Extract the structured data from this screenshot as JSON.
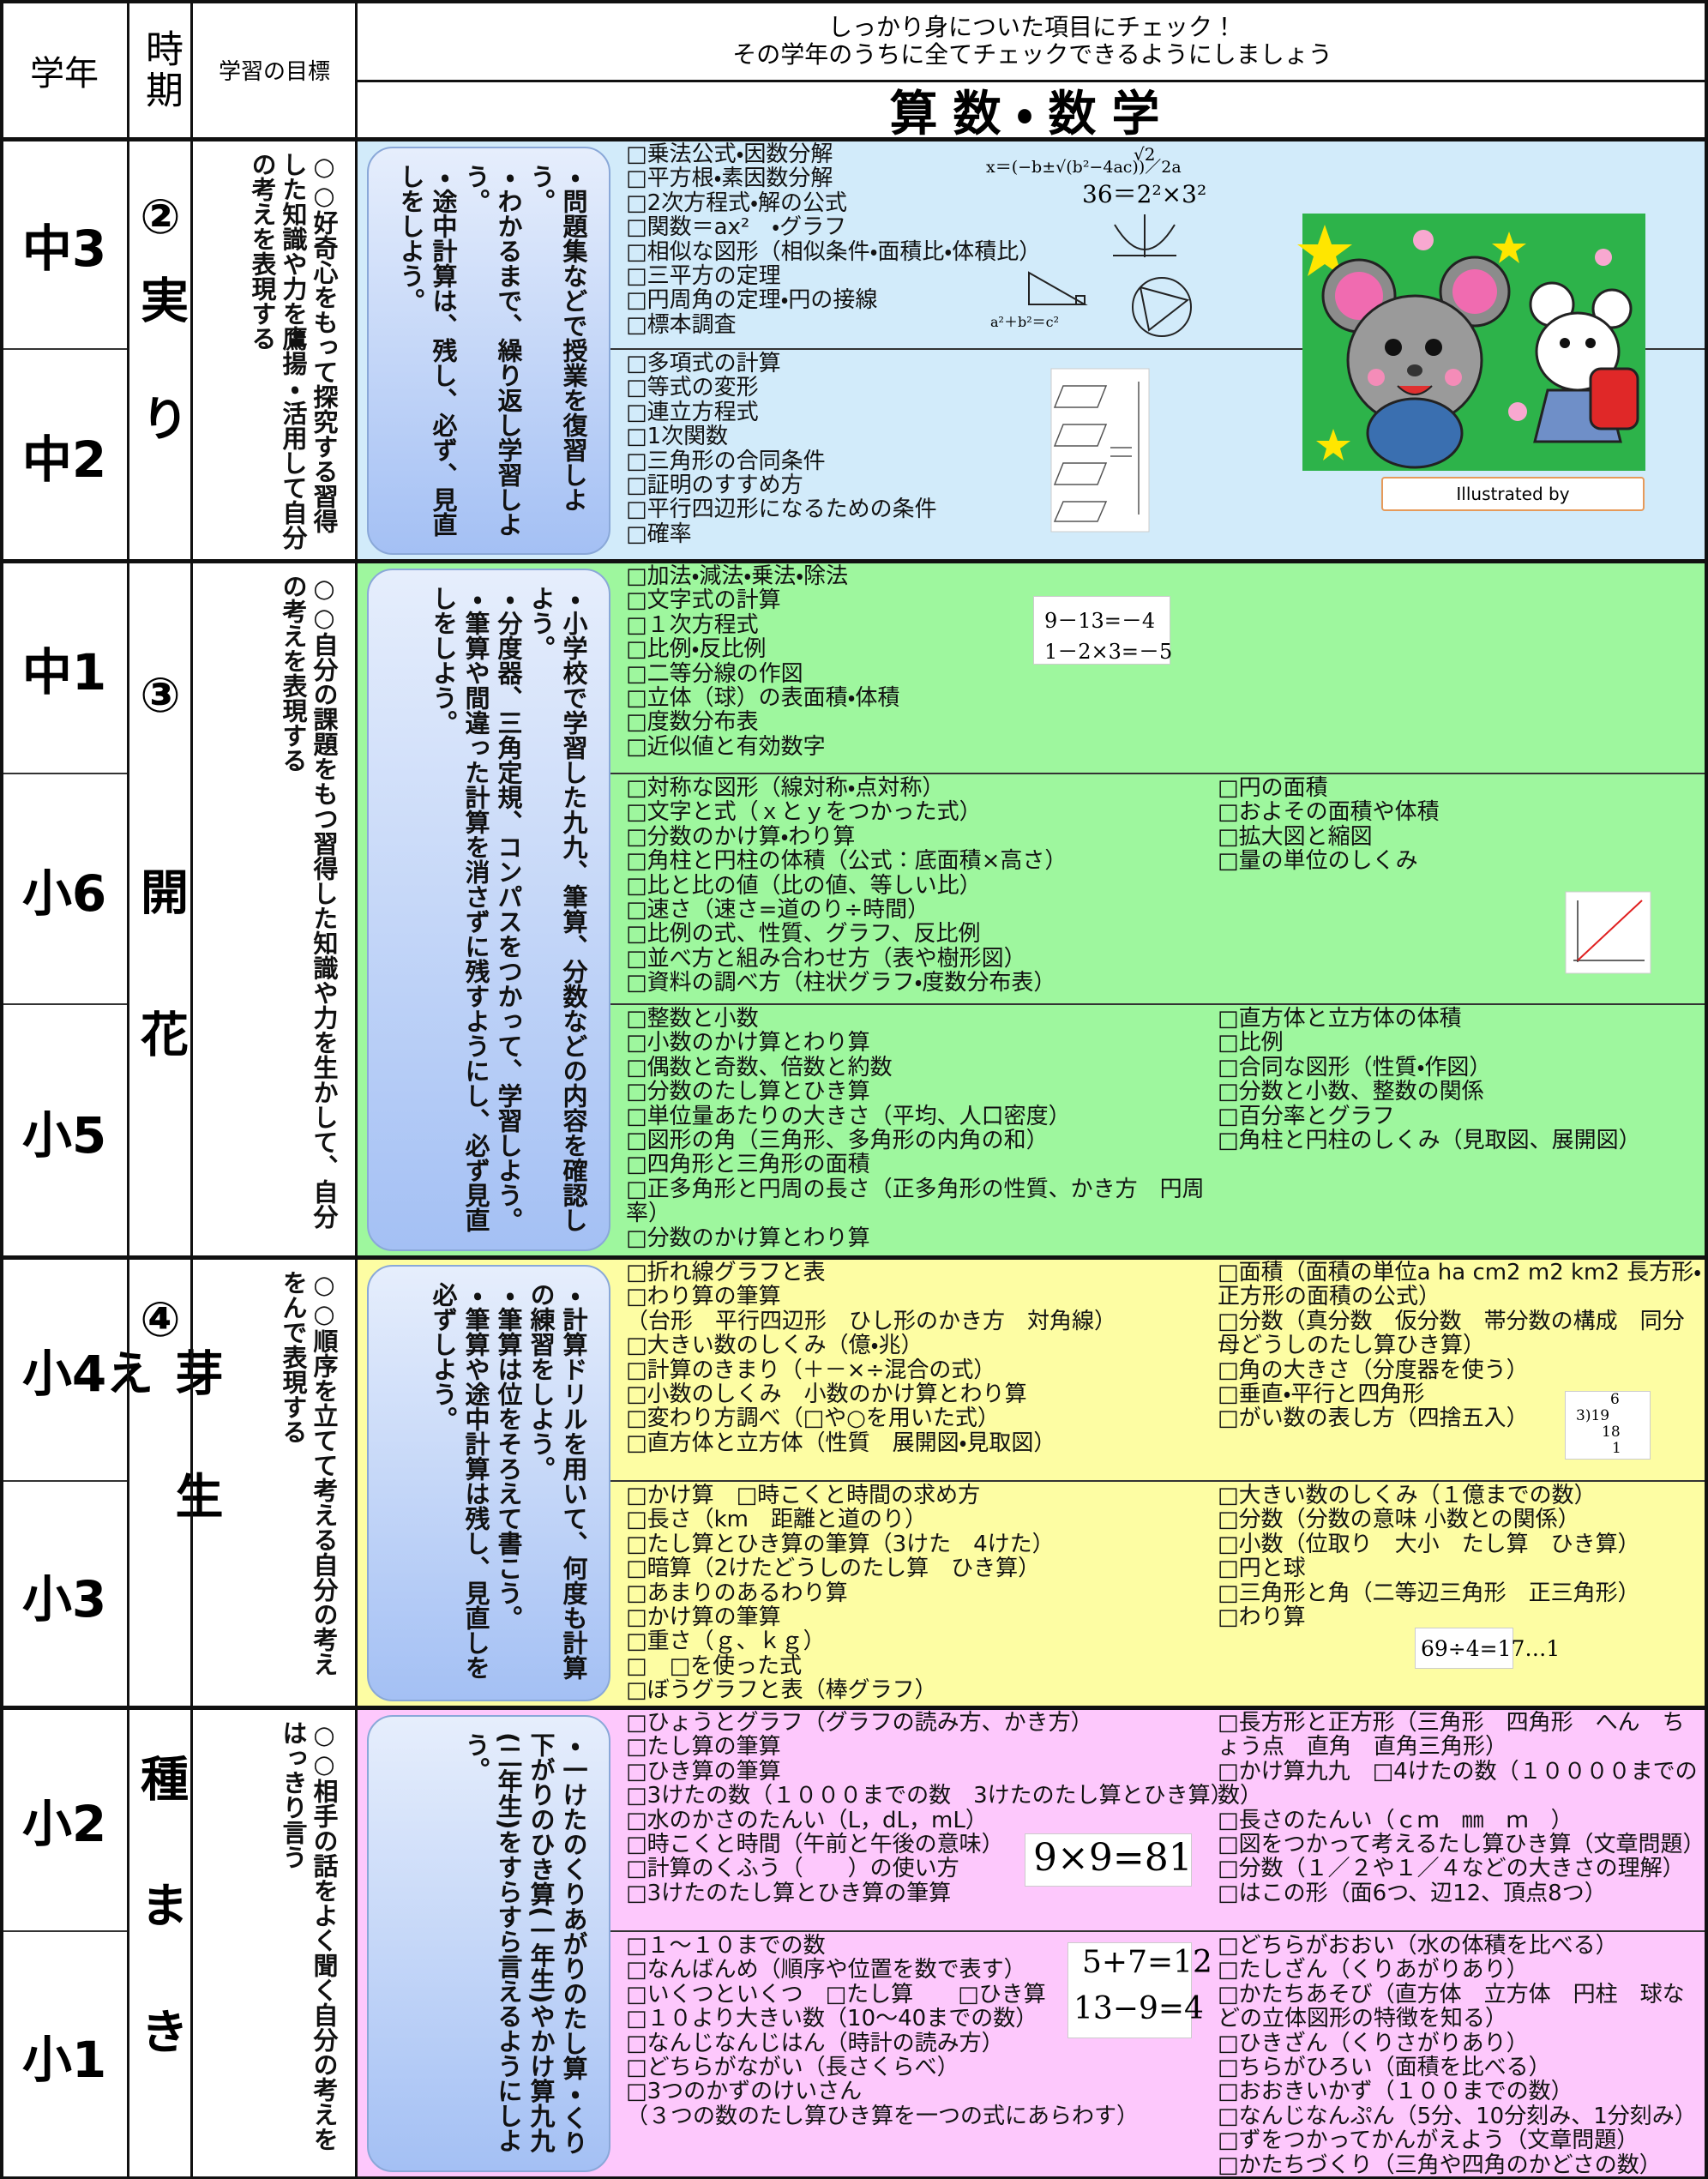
{
  "header": {
    "col_grade": "学年",
    "col_period": "時期",
    "col_goal": "学習の目標",
    "instruction": [
      "しっかり身についた項目にチェック！",
      "その学年のうちに全てチェックできるようにしましょう"
    ],
    "subject": "算数・数学"
  },
  "illustration_credit": "Illustrated by",
  "groups": [
    {
      "period_number": "②",
      "period": "実り",
      "goal": "○○好奇心をもって探究する習得した知識や力を鷹揚・活用して自分の考えを表現する",
      "note": [
        "・問題集などで授業を復習しよう。",
        "・わかるまで、繰り返し学習しよう。",
        "・途中計算は、残し、必ず、見直しをしよう。"
      ],
      "grades": [
        {
          "grade": "中3",
          "left": [
            "□乗法公式・因数分解",
            "□平方根・素因数分解",
            "□2次方程式・解の公式",
            "□関数＝ax²　・グラフ",
            "□相似な図形（相似条件・面積比・体積比）",
            "□三平方の定理",
            "□円周角の定理・円の接線",
            "□標本調査"
          ],
          "figure": [
            "x＝(−b±√(b²−4ac))／2a",
            "√2",
            "36＝2²×3²",
            "a²＋b²＝c²"
          ]
        },
        {
          "grade": "中2",
          "left": [
            "□多項式の計算",
            "□等式の変形",
            "□連立方程式",
            "□1次関数",
            "□三角形の合同条件",
            "□証明のすすめ方",
            "□平行四辺形になるための条件",
            "□確率"
          ]
        }
      ]
    },
    {
      "period_number": "③",
      "period": "開花",
      "goal": "○○自分の課題をもつ習得した知識や力を生かして、自分の考えを表現する",
      "note": [
        "・小学校で学習した九九、筆算、分数などの内容を確認しよう。",
        "・分度器、三角定規、コンパスをつかって、学習しよう。",
        "・筆算や間違った計算を消さずに残すようにし、必ず見直しをしよう。"
      ],
      "grades": [
        {
          "grade": "中1",
          "left": [
            "□加法・減法・乗法・除法",
            "□文字式の計算",
            "□１次方程式",
            "□比例・反比例",
            "□二等分線の作図",
            "□立体（球）の表面積・体積",
            "□度数分布表",
            "□近似値と有効数字"
          ],
          "figure": [
            "9－13=－4",
            "1－2×3=－5"
          ]
        },
        {
          "grade": "小6",
          "left": [
            "□対称な図形（線対称・点対称）",
            "□文字と式（ｘとｙをつかった式）",
            "□分数のかけ算・わり算",
            "□角柱と円柱の体積（公式：底面積×高さ）",
            "□比と比の値（比の値、等しい比）",
            "□速さ（速さ=道のり÷時間）",
            "□比例の式、性質、グラフ、反比例",
            "□並べ方と組み合わせ方（表や樹形図）",
            "□資料の調べ方（柱状グラフ・度数分布表）"
          ],
          "right": [
            "□円の面積",
            "□およその面積や体積",
            "□拡大図と縮図",
            "□量の単位のしくみ"
          ]
        },
        {
          "grade": "小5",
          "left": [
            "□整数と小数",
            "□小数のかけ算とわり算",
            "□偶数と奇数、倍数と約数",
            "□分数のたし算とひき算",
            "□単位量あたりの大きさ（平均、人口密度）",
            "□図形の角（三角形、多角形の内角の和）",
            "□四角形と三角形の面積",
            "□正多角形と円周の長さ（正多角形の性質、かき方　円周率）",
            "□分数のかけ算とわり算"
          ],
          "right": [
            "□直方体と立方体の体積",
            "□比例",
            "□合同な図形（性質・作図）",
            "□分数と小数、整数の関係",
            "□百分率とグラフ",
            "□角柱と円柱のしくみ（見取図、展開図）"
          ]
        }
      ]
    },
    {
      "period_number": "④",
      "period": "芽生え",
      "goal": "○○順序を立てて考える自分の考えをんで表現する",
      "note": [
        "・計算ドリルを用いて、何度も計算の練習をしよう。",
        "・筆算は位をそろえて書こう。",
        "・筆算や途中計算は残し、見直しを必ずしよう。"
      ],
      "grades": [
        {
          "grade": "小4",
          "left": [
            "□折れ線グラフと表",
            "□わり算の筆算",
            "（台形　平行四辺形　ひし形のかき方　対角線）",
            "□大きい数のしくみ（億・兆）",
            "□計算のきまり（＋－×÷混合の式）",
            "□小数のしくみ　小数のかけ算とわり算",
            "□変わり方調べ（□や○を用いた式）",
            "□直方体と立方体（性質　展開図・見取図）"
          ],
          "right": [
            "□面積（面積の単位a ha cm2 m2 km2 長方形・正方形の面積の公式）",
            "□分数（真分数　仮分数　帯分数の構成　同分母どうしのたし算ひき算）",
            "□角の大きさ（分度器を使う）",
            "□垂直・平行と四角形",
            "□がい数の表し方（四捨五入）"
          ],
          "figure": [
            "6",
            "3)19",
            "18",
            "1"
          ]
        },
        {
          "grade": "小3",
          "left": [
            "□かけ算　□時こくと時間の求め方",
            "□長さ（km　距離と道のり）",
            "□たし算とひき算の筆算（3けた　4けた）",
            "□暗算（2けたどうしのたし算　ひき算）",
            "□あまりのあるわり算",
            "□かけ算の筆算",
            "□重さ（ｇ、ｋｇ）",
            "□　□を使った式",
            "□ぼうグラフと表（棒グラフ）"
          ],
          "right": [
            "□大きい数のしくみ（１億までの数）",
            "□分数（分数の意味 小数との関係）",
            "□小数（位取り　大小　たし算　ひき算）",
            "□円と球",
            "□三角形と角（二等辺三角形　正三角形）",
            "□わり算"
          ],
          "figure": [
            "69÷4=17…1"
          ]
        }
      ]
    },
    {
      "period": "種まき",
      "goal": "○○相手の話をよく聞く自分の考えをはっきり言う",
      "note": [
        "・一けたのくりあがりのたし算・くり下がりのひき算(一年生)やかけ算九九(二年生)をすらすら言えるようにしよう。"
      ],
      "grades": [
        {
          "grade": "小2",
          "left": [
            "□ひょうとグラフ（グラフの読み方、かき方）",
            "□たし算の筆算",
            "□ひき算の筆算",
            "□3けたの数（１０００までの数　3けたのたし算とひき算）",
            "□水のかさのたんい（L，dL，mL）",
            "□時こくと時間（午前と午後の意味）",
            "□計算のくふう（　　）の使い方",
            "□3けたのたし算とひき算の筆算"
          ],
          "right": [
            "□長方形と正方形（三角形　四角形　へん　ちょう点　直角　直角三角形）",
            "□かけ算九九　□4けたの数（１００００までの数）",
            "□長さのたんい（ｃｍ　㎜　ｍ　）",
            "□図をつかって考えるたし算ひき算（文章問題）",
            "□分数（１／２や１／４などの大きさの理解）",
            "□はこの形（面6つ、辺12、頂点8つ）"
          ],
          "figure": [
            "9×9=81"
          ]
        },
        {
          "grade": "小1",
          "left": [
            "□１～１０までの数",
            "□なんばんめ（順序や位置を数で表す）",
            "□いくつといくつ　□たし算　　□ひき算",
            "□１０より大きい数（10～40までの数）",
            "□なんじなんじはん（時計の読み方）",
            "□どちらがながい（長さくらべ）",
            "□3つのかずのけいさん",
            "（３つの数のたし算ひき算を一つの式にあらわす）"
          ],
          "right": [
            "□どちらがおおい（水の体積を比べる）",
            "□たしざん（くりあがりあり）",
            "□かたちあそび（直方体　立方体　円柱　球などの立体図形の特徴を知る）",
            "□ひきざん（くりさがりあり）",
            "□ちらがひろい（面積を比べる）",
            "□おおきいかず（１００までの数）",
            "□なんじなんぷん（5分、10分刻み、1分刻み）",
            "□ずをつかってかんがえよう（文章問題）",
            "□かたちづくり（三角や四角のかどさの数）"
          ],
          "figure": [
            "5+7=12",
            "13−9=4"
          ]
        }
      ]
    }
  ]
}
